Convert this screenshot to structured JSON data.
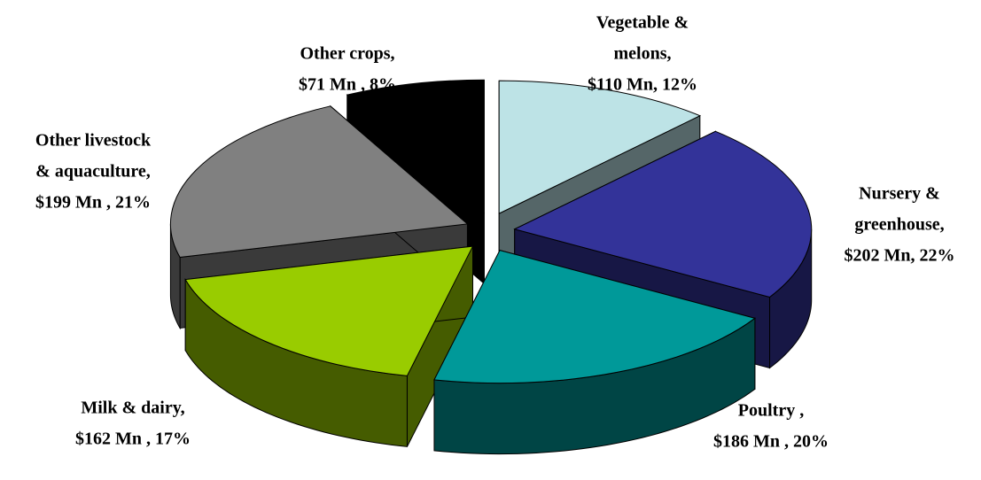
{
  "chart_data": {
    "type": "pie3d",
    "labels": [
      [
        "Vegetable &",
        "melons,",
        "$110 Mn, 12%"
      ],
      [
        "Nursery &",
        "greenhouse,",
        "$202 Mn, 22%"
      ],
      [
        "Poultry ,",
        "$186 Mn , 20%"
      ],
      [
        "Milk & dairy,",
        "$162 Mn , 17%"
      ],
      [
        "Other livestock",
        "& aquaculture,",
        "$199 Mn , 21%"
      ],
      [
        "Other crops,",
        "$71 Mn , 8%"
      ]
    ],
    "values": [
      110,
      202,
      186,
      162,
      199,
      71
    ],
    "colors": [
      "#bde3e6",
      "#333399",
      "#009999",
      "#99cc00",
      "#808080",
      "#000000"
    ]
  }
}
